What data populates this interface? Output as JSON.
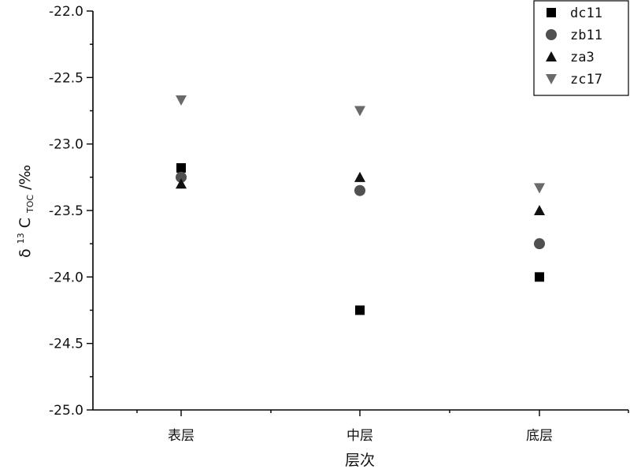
{
  "chart_data": {
    "type": "scatter",
    "categories": [
      "表层",
      "中层",
      "底层"
    ],
    "series": [
      {
        "name": "dc11",
        "marker": "square",
        "color": "#000000",
        "values": [
          -23.18,
          -24.25,
          -24.0
        ]
      },
      {
        "name": "zb11",
        "marker": "circle",
        "color": "#505050",
        "values": [
          -23.25,
          -23.35,
          -23.75
        ]
      },
      {
        "name": "za3",
        "marker": "triangle-up",
        "color": "#111111",
        "values": [
          -23.3,
          -23.25,
          -23.5
        ]
      },
      {
        "name": "zc17",
        "marker": "triangle-down",
        "color": "#6a6a6a",
        "values": [
          -22.67,
          -22.75,
          -23.33
        ]
      }
    ],
    "xlabel": "层次",
    "ylabel": {
      "base": "δ",
      "sup": "13",
      "main": "C",
      "sub": "TOC",
      "unit": "/‰"
    },
    "ylim": [
      -25.0,
      -22.0
    ],
    "yticks": [
      "-22.0",
      "-22.5",
      "-23.0",
      "-23.5",
      "-24.0",
      "-24.5",
      "-25.0"
    ],
    "grid": false,
    "legend_position": "top-right"
  }
}
